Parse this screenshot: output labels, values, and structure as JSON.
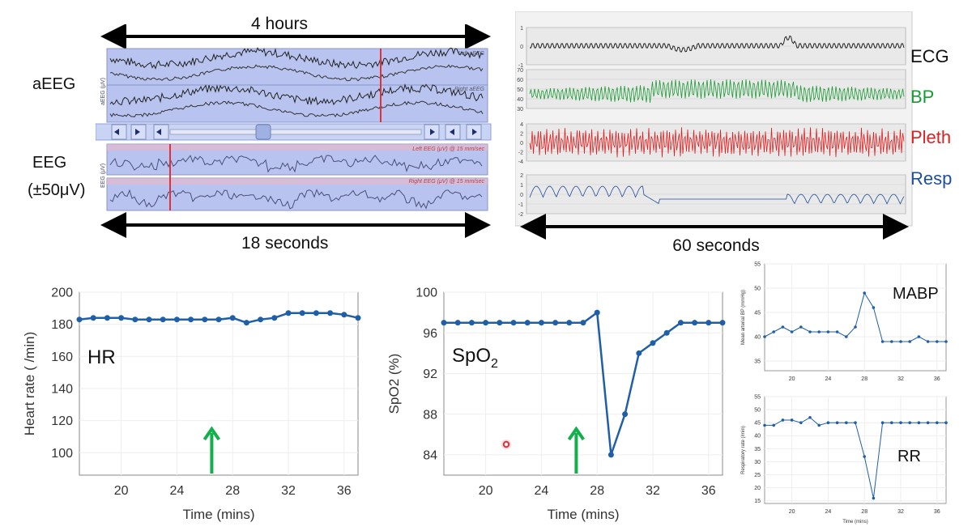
{
  "eeg_panel": {
    "duration_top": "4 hours",
    "duration_bottom": "18 seconds",
    "label_aeeg": "aEEG",
    "label_eeg": "EEG",
    "label_eeg_range": "(±50μV)",
    "left_aeeg": "Left aEEG",
    "right_aeeg": "Right aEEG",
    "left_eeg": "Left EEG (μV) @ 15 mm/sec",
    "right_eeg": "Right EEG (μV) @ 15 mm/sec",
    "aeeg_axis_label": "aEEG (μV)",
    "eeg_axis_label": "EEG (μV)"
  },
  "vitals_panel": {
    "duration": "60 seconds",
    "labels": [
      "ECG",
      "BP",
      "Pleth",
      "Resp"
    ],
    "colors": [
      "#111111",
      "#1a9a33",
      "#e02020",
      "#1f4e9a"
    ]
  },
  "colors": {
    "series": "#1f5fa8",
    "arrow": "#11b04a",
    "eeg_bg": "#b8c4ef",
    "marker": "#e0303a"
  },
  "chart_data": [
    {
      "type": "line",
      "label": "HR",
      "ylabel": "Heart rate ( /min)",
      "xlabel": "Time (mins)",
      "x": [
        17,
        18,
        19,
        20,
        21,
        22,
        23,
        24,
        25,
        26,
        27,
        28,
        29,
        30,
        31,
        32,
        33,
        34,
        35,
        36,
        37
      ],
      "y": [
        183,
        184,
        184,
        184,
        183,
        183,
        183,
        183,
        183,
        183,
        183,
        184,
        181,
        183,
        184,
        187,
        187,
        187,
        187,
        186,
        184
      ],
      "xlim": [
        17,
        37
      ],
      "ylim": [
        86,
        200
      ],
      "xticks": [
        20,
        24,
        28,
        32,
        36
      ],
      "yticks": [
        100,
        120,
        140,
        160,
        180,
        200
      ],
      "arrow_x": 26.5
    },
    {
      "type": "line",
      "label_main": "SpO",
      "label_sub": "2",
      "ylabel": "SpO2 (%)",
      "xlabel": "Time (mins)",
      "x": [
        17,
        18,
        19,
        20,
        21,
        22,
        23,
        24,
        25,
        26,
        27,
        28,
        29,
        30,
        31,
        32,
        33,
        34,
        35,
        36,
        37
      ],
      "y": [
        97,
        97,
        97,
        97,
        97,
        97,
        97,
        97,
        97,
        97,
        97,
        98,
        84,
        88,
        94,
        95,
        96,
        97,
        97,
        97,
        97
      ],
      "xlim": [
        17,
        37
      ],
      "ylim": [
        82,
        100
      ],
      "xticks": [
        20,
        24,
        28,
        32,
        36
      ],
      "yticks": [
        84,
        88,
        92,
        96,
        100
      ],
      "arrow_x": 26.5
    },
    {
      "type": "line",
      "label": "MABP",
      "ylabel": "Mean arterial BP (mmHg)",
      "xlabel": "",
      "x": [
        17,
        18,
        19,
        20,
        21,
        22,
        23,
        24,
        25,
        26,
        27,
        28,
        29,
        30,
        31,
        32,
        33,
        34,
        35,
        36,
        37
      ],
      "y": [
        40,
        41,
        42,
        41,
        42,
        41,
        41,
        41,
        41,
        40,
        42,
        49,
        46,
        39,
        39,
        39,
        39,
        40,
        39,
        39,
        39
      ],
      "xlim": [
        17,
        37
      ],
      "ylim": [
        33,
        55
      ],
      "xticks": [
        20,
        24,
        28,
        32,
        36
      ],
      "yticks": [
        35,
        40,
        45,
        50,
        55
      ]
    },
    {
      "type": "line",
      "label": "RR",
      "ylabel": "Respiratory rate (/min)",
      "xlabel": "Time (mins)",
      "x": [
        17,
        18,
        19,
        20,
        21,
        22,
        23,
        24,
        25,
        26,
        27,
        28,
        29,
        30,
        31,
        32,
        33,
        34,
        35,
        36,
        37
      ],
      "y": [
        44,
        44,
        46,
        46,
        45,
        47,
        44,
        45,
        45,
        45,
        45,
        32,
        16,
        45,
        45,
        45,
        45,
        45,
        45,
        45,
        45
      ],
      "xlim": [
        17,
        37
      ],
      "ylim": [
        14,
        55
      ],
      "xticks": [
        20,
        24,
        28,
        32,
        36
      ],
      "yticks": [
        15,
        20,
        25,
        30,
        35,
        40,
        45,
        50,
        55
      ]
    }
  ]
}
